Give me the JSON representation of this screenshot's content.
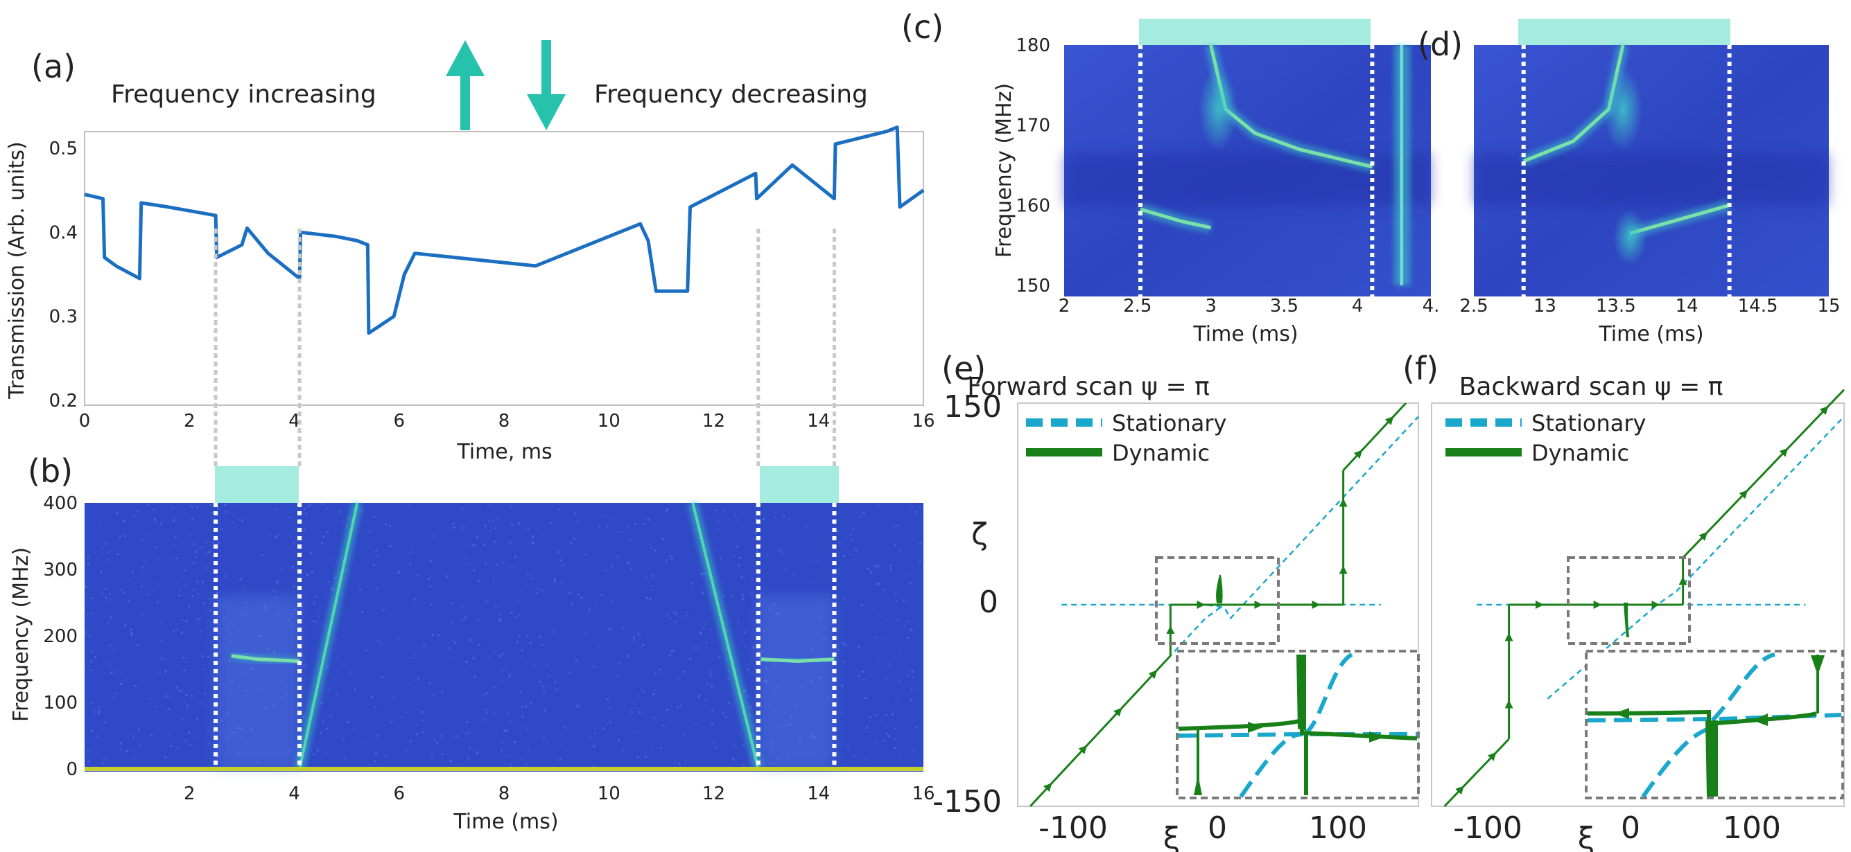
{
  "colors": {
    "trace": "#1b6fc2",
    "teal": "#26c2ac",
    "highlight": "#a6ebe0",
    "spec_bg": "#3049c6",
    "spec_line": "#4fd6b0",
    "stationary": "#19a7cc",
    "dynamic": "#198019",
    "guide": "#c8c8c8",
    "box": "#7a7a7a"
  },
  "panel_a": {
    "label": "(a)",
    "increasing": "Frequency increasing",
    "decreasing": "Frequency decreasing",
    "up_arrow": "up-arrow-icon",
    "down_arrow": "down-arrow-icon",
    "ylabel": "Transmission (Arb. units)",
    "xlabel": "Time, ms",
    "yticks": [
      "0.2",
      "0.3",
      "0.4",
      "0.5"
    ],
    "xticks": [
      "0",
      "2",
      "4",
      "6",
      "8",
      "10",
      "12",
      "14",
      "16"
    ],
    "xlim": [
      0,
      16
    ],
    "ylim": [
      0.2,
      0.53
    ]
  },
  "panel_b": {
    "label": "(b)",
    "ylabel": "Frequency (MHz)",
    "xlabel": "Time (ms)",
    "yticks": [
      "0",
      "100",
      "200",
      "300",
      "400"
    ],
    "xticks": [
      "2",
      "4",
      "6",
      "8",
      "10",
      "12",
      "14",
      "16"
    ],
    "xlim": [
      0,
      16
    ],
    "ylim": [
      0,
      400
    ]
  },
  "panel_c": {
    "label": "(c)",
    "ylabel": "Frequency (MHz)",
    "xlabel": "Time (ms)",
    "yticks": [
      "150",
      "160",
      "170",
      "180"
    ],
    "xticks": [
      "2",
      "2.5",
      "3",
      "3.5",
      "4",
      "4."
    ],
    "xlim": [
      2,
      4.5
    ],
    "ylim": [
      150,
      180
    ]
  },
  "panel_d": {
    "label": "(d)",
    "xlabel": "Time (ms)",
    "xticks": [
      "2.5",
      "13",
      "13.5",
      "14",
      "14.5",
      "15"
    ],
    "xlim": [
      12.5,
      15
    ],
    "ylim": [
      150,
      180
    ]
  },
  "panel_e": {
    "label": "(e)",
    "title": "Forward scan ψ = π",
    "legend_stationary": "Stationary",
    "legend_dynamic": "Dynamic",
    "yticks": [
      "150",
      "0",
      "-150"
    ],
    "xticks": [
      "-100",
      "0",
      "100"
    ],
    "ylabel": "ζ",
    "xlabel": "ξ"
  },
  "panel_f": {
    "label": "(f)",
    "title": "Backward scan ψ = π",
    "legend_stationary": "Stationary",
    "legend_dynamic": "Dynamic",
    "xticks": [
      "-100",
      "0",
      "100"
    ],
    "xlabel": "ξ"
  },
  "chart_data": [
    {
      "type": "line",
      "panel": "a",
      "ylabel": "Transmission (Arb. units)",
      "xlabel": "Time, ms",
      "xlim": [
        0,
        16
      ],
      "ylim": [
        0.2,
        0.53
      ],
      "highlight_windows": [
        [
          2.5,
          4.1
        ],
        [
          12.85,
          14.3
        ]
      ],
      "series": [
        {
          "name": "transmission",
          "points": [
            [
              0,
              0.445
            ],
            [
              0.35,
              0.44
            ],
            [
              0.38,
              0.37
            ],
            [
              0.6,
              0.36
            ],
            [
              1.05,
              0.345
            ],
            [
              1.08,
              0.435
            ],
            [
              1.6,
              0.43
            ],
            [
              2.5,
              0.42
            ],
            [
              2.52,
              0.37
            ],
            [
              3.0,
              0.385
            ],
            [
              3.1,
              0.405
            ],
            [
              3.5,
              0.375
            ],
            [
              4.1,
              0.345
            ],
            [
              4.12,
              0.4
            ],
            [
              4.8,
              0.395
            ],
            [
              5.2,
              0.39
            ],
            [
              5.4,
              0.385
            ],
            [
              5.42,
              0.28
            ],
            [
              5.9,
              0.3
            ],
            [
              6.1,
              0.35
            ],
            [
              6.3,
              0.375
            ],
            [
              8.6,
              0.36
            ],
            [
              10.6,
              0.41
            ],
            [
              10.75,
              0.39
            ],
            [
              10.9,
              0.33
            ],
            [
              11.5,
              0.33
            ],
            [
              11.55,
              0.43
            ],
            [
              12.8,
              0.47
            ],
            [
              12.82,
              0.44
            ],
            [
              13.5,
              0.48
            ],
            [
              14.3,
              0.44
            ],
            [
              14.32,
              0.505
            ],
            [
              15.3,
              0.52
            ],
            [
              15.5,
              0.525
            ],
            [
              15.55,
              0.43
            ],
            [
              16,
              0.45
            ]
          ]
        }
      ]
    },
    {
      "type": "heatmap",
      "panel": "b",
      "ylabel": "Frequency (MHz)",
      "xlabel": "Time (ms)",
      "xlim": [
        0,
        16
      ],
      "ylim": [
        0,
        400
      ],
      "highlight_windows": [
        [
          2.5,
          4.1
        ],
        [
          12.85,
          14.3
        ]
      ],
      "features": [
        {
          "name": "rising chirp",
          "points": [
            [
              4.1,
              0
            ],
            [
              5.2,
              400
            ]
          ]
        },
        {
          "name": "falling chirp",
          "points": [
            [
              11.6,
              400
            ],
            [
              12.85,
              0
            ]
          ]
        },
        {
          "name": "resonance 1",
          "points": [
            [
              2.8,
              170
            ],
            [
              3.3,
              165
            ],
            [
              4.1,
              162
            ]
          ]
        },
        {
          "name": "resonance 2",
          "points": [
            [
              12.9,
              165
            ],
            [
              13.6,
              162
            ],
            [
              14.3,
              165
            ]
          ]
        }
      ]
    },
    {
      "type": "heatmap",
      "panel": "c",
      "ylabel": "Frequency (MHz)",
      "xlabel": "Time (ms)",
      "xlim": [
        2,
        4.5
      ],
      "ylim": [
        150,
        180
      ],
      "highlight_windows": [
        [
          2.52,
          4.1
        ]
      ],
      "features": [
        {
          "name": "lower branch",
          "points": [
            [
              2.52,
              159.5
            ],
            [
              2.8,
              158
            ],
            [
              3.0,
              157.2
            ]
          ]
        },
        {
          "name": "upper branch",
          "points": [
            [
              3.0,
              180
            ],
            [
              3.1,
              172
            ],
            [
              3.3,
              169
            ],
            [
              3.6,
              167
            ],
            [
              4.1,
              164.8
            ]
          ]
        },
        {
          "name": "chirp band",
          "points": [
            [
              4.3,
              150
            ],
            [
              4.3,
              180
            ]
          ]
        }
      ]
    },
    {
      "type": "heatmap",
      "panel": "d",
      "xlabel": "Time (ms)",
      "xlim": [
        12.5,
        15
      ],
      "ylim": [
        150,
        180
      ],
      "highlight_windows": [
        [
          12.85,
          14.3
        ]
      ],
      "features": [
        {
          "name": "upper branch",
          "points": [
            [
              12.85,
              165.5
            ],
            [
              13.2,
              168
            ],
            [
              13.45,
              172
            ],
            [
              13.55,
              180
            ]
          ]
        },
        {
          "name": "lower branch",
          "points": [
            [
              13.6,
              156.5
            ],
            [
              13.9,
              158
            ],
            [
              14.3,
              160
            ]
          ]
        }
      ]
    },
    {
      "type": "line",
      "panel": "e",
      "title": "Forward scan ψ = π",
      "xlabel": "ξ",
      "ylabel": "ζ",
      "xlim": [
        -160,
        160
      ],
      "ylim": [
        -150,
        150
      ],
      "series": [
        {
          "name": "Stationary",
          "points": [
            [
              -125,
              0
            ],
            [
              -10,
              0
            ],
            [
              5,
              -2
            ],
            [
              10,
              -10
            ],
            [
              160,
              140
            ]
          ]
        },
        {
          "name": "Stationary (lower)",
          "points": [
            [
              -40,
              -40
            ],
            [
              -10,
              -10
            ],
            [
              5,
              0
            ],
            [
              130,
              0
            ]
          ]
        },
        {
          "name": "Dynamic",
          "points": [
            [
              -150,
              -150
            ],
            [
              -38,
              -38
            ],
            [
              -38,
              0
            ],
            [
              100,
              0
            ],
            [
              100,
              100
            ],
            [
              150,
              150
            ]
          ]
        }
      ]
    },
    {
      "type": "line",
      "panel": "f",
      "title": "Backward scan ψ = π",
      "xlabel": "ξ",
      "xlim": [
        -160,
        160
      ],
      "ylim": [
        -150,
        150
      ],
      "series": [
        {
          "name": "Stationary",
          "points": [
            [
              -125,
              0
            ],
            [
              15,
              0
            ],
            [
              30,
              10
            ],
            [
              160,
              140
            ]
          ]
        },
        {
          "name": "Stationary (lower)",
          "points": [
            [
              -70,
              -70
            ],
            [
              15,
              0
            ],
            [
              130,
              0
            ]
          ]
        },
        {
          "name": "Dynamic",
          "points": [
            [
              -150,
              -150
            ],
            [
              -100,
              -100
            ],
            [
              -100,
              0
            ],
            [
              35,
              0
            ],
            [
              35,
              35
            ],
            [
              160,
              160
            ]
          ]
        }
      ]
    }
  ]
}
